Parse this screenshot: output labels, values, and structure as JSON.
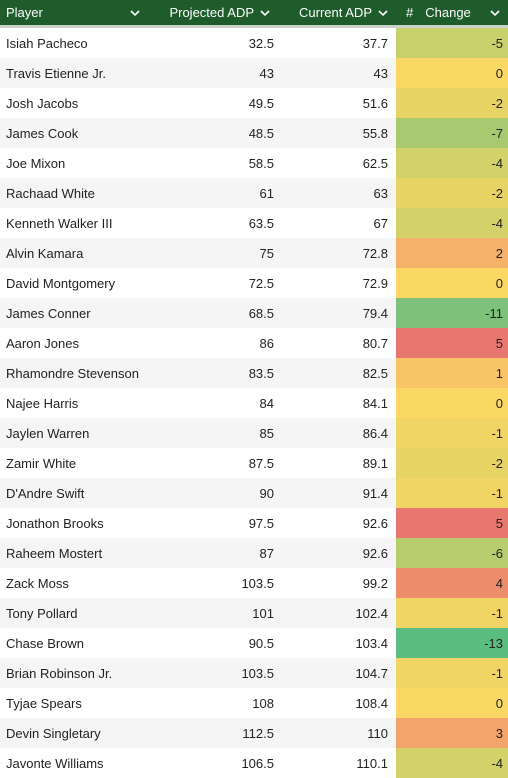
{
  "columns": {
    "player": "Player",
    "projected": "Projected ADP",
    "current": "Current ADP",
    "change_icon": "#",
    "change": "Change"
  },
  "rows": [
    {
      "player": "Isiah Pacheco",
      "projected": "32.5",
      "current": "37.7",
      "change": "-5",
      "color": "#c6d16c"
    },
    {
      "player": "Travis Etienne Jr.",
      "projected": "43",
      "current": "43",
      "change": "0",
      "color": "#fbd864"
    },
    {
      "player": "Josh Jacobs",
      "projected": "49.5",
      "current": "51.6",
      "change": "-2",
      "color": "#e8d465"
    },
    {
      "player": "James Cook",
      "projected": "48.5",
      "current": "55.8",
      "change": "-7",
      "color": "#a8c970"
    },
    {
      "player": "Joe Mixon",
      "projected": "58.5",
      "current": "62.5",
      "change": "-4",
      "color": "#d3d269"
    },
    {
      "player": "Rachaad White",
      "projected": "61",
      "current": "63",
      "change": "-2",
      "color": "#e8d465"
    },
    {
      "player": "Kenneth Walker III",
      "projected": "63.5",
      "current": "67",
      "change": "-4",
      "color": "#d3d269"
    },
    {
      "player": "Alvin Kamara",
      "projected": "75",
      "current": "72.8",
      "change": "2",
      "color": "#f5b06a"
    },
    {
      "player": "David Montgomery",
      "projected": "72.5",
      "current": "72.9",
      "change": "0",
      "color": "#fbd864"
    },
    {
      "player": "James Conner",
      "projected": "68.5",
      "current": "79.4",
      "change": "-11",
      "color": "#7dc17a"
    },
    {
      "player": "Aaron Jones",
      "projected": "86",
      "current": "80.7",
      "change": "5",
      "color": "#e8776f"
    },
    {
      "player": "Rhamondre Stevenson",
      "projected": "83.5",
      "current": "82.5",
      "change": "1",
      "color": "#f8c466"
    },
    {
      "player": "Najee Harris",
      "projected": "84",
      "current": "84.1",
      "change": "0",
      "color": "#fbd864"
    },
    {
      "player": "Jaylen Warren",
      "projected": "85",
      "current": "86.4",
      "change": "-1",
      "color": "#f0d564"
    },
    {
      "player": "Zamir White",
      "projected": "87.5",
      "current": "89.1",
      "change": "-2",
      "color": "#e8d465"
    },
    {
      "player": "D'Andre Swift",
      "projected": "90",
      "current": "91.4",
      "change": "-1",
      "color": "#f0d564"
    },
    {
      "player": "Jonathon Brooks",
      "projected": "97.5",
      "current": "92.6",
      "change": "5",
      "color": "#e8776f"
    },
    {
      "player": "Raheem Mostert",
      "projected": "87",
      "current": "92.6",
      "change": "-6",
      "color": "#b8cd6e"
    },
    {
      "player": "Zack Moss",
      "projected": "103.5",
      "current": "99.2",
      "change": "4",
      "color": "#ed8d6c"
    },
    {
      "player": "Tony Pollard",
      "projected": "101",
      "current": "102.4",
      "change": "-1",
      "color": "#f0d564"
    },
    {
      "player": "Chase Brown",
      "projected": "90.5",
      "current": "103.4",
      "change": "-13",
      "color": "#5cbd80"
    },
    {
      "player": "Brian Robinson Jr.",
      "projected": "103.5",
      "current": "104.7",
      "change": "-1",
      "color": "#f0d564"
    },
    {
      "player": "Tyjae Spears",
      "projected": "108",
      "current": "108.4",
      "change": "0",
      "color": "#fbd864"
    },
    {
      "player": "Devin Singletary",
      "projected": "112.5",
      "current": "110",
      "change": "3",
      "color": "#f2a46a"
    },
    {
      "player": "Javonte Williams",
      "projected": "106.5",
      "current": "110.1",
      "change": "-4",
      "color": "#d3d269"
    }
  ],
  "colors": {
    "header_bg": "#1f5c2c",
    "header_text": "#ffffff",
    "row_alt": "#f4f5f4"
  },
  "icons": {
    "sort": "chevron-down-icon"
  }
}
